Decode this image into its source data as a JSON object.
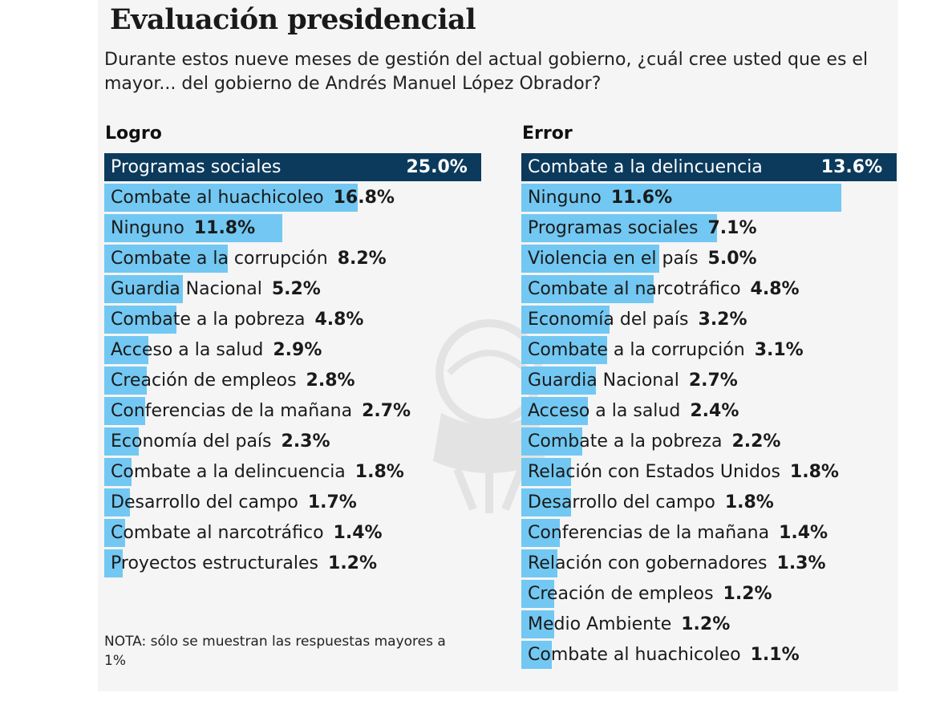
{
  "title": "Evaluación presidencial",
  "subtitle": "Durante estos nueve meses de gestión del actual gobierno, ¿cuál cree usted que es el mayor... del gobierno de Andrés Manuel López Obrador?",
  "note": "NOTA: sólo se muestran las respuestas mayores a 1%",
  "colors": {
    "highlight": "#0c3a5c",
    "bar": "#72c8f2",
    "background": "#f5f5f5"
  },
  "chart_data": [
    {
      "type": "bar",
      "orientation": "horizontal",
      "title": "Logro",
      "max": 25.0,
      "unit": "%",
      "categories": [
        "Programas sociales",
        "Combate al huachicoleo",
        "Ninguno",
        "Combate a la corrupción",
        "Guardia Nacional",
        "Combate a la pobreza",
        "Acceso a la salud",
        "Creación de empleos",
        "Conferencias de la mañana",
        "Economía del país",
        "Combate a la delincuencia",
        "Desarrollo del campo",
        "Combate al narcotráfico",
        "Proyectos estructurales"
      ],
      "values": [
        25.0,
        16.8,
        11.8,
        8.2,
        5.2,
        4.8,
        2.9,
        2.8,
        2.7,
        2.3,
        1.8,
        1.7,
        1.4,
        1.2
      ],
      "labels": [
        "25.0%",
        "16.8%",
        "11.8%",
        "8.2%",
        "5.2%",
        "4.8%",
        "2.9%",
        "2.8%",
        "2.7%",
        "2.3%",
        "1.8%",
        "1.7%",
        "1.4%",
        "1.2%"
      ]
    },
    {
      "type": "bar",
      "orientation": "horizontal",
      "title": "Error",
      "max": 13.6,
      "unit": "%",
      "categories": [
        "Combate a la delincuencia",
        "Ninguno",
        "Programas sociales",
        "Violencia en el país",
        "Combate al narcotráfico",
        "Economía del país",
        "Combate a la corrupción",
        "Guardia Nacional",
        "Acceso a la salud",
        "Combate a la pobreza",
        "Relación con Estados Unidos",
        "Desarrollo del campo",
        "Conferencias de la mañana",
        "Relación con gobernadores",
        "Creación de empleos",
        "Medio Ambiente",
        "Combate al huachicoleo"
      ],
      "values": [
        13.6,
        11.6,
        7.1,
        5.0,
        4.8,
        3.2,
        3.1,
        2.7,
        2.4,
        2.2,
        1.8,
        1.8,
        1.4,
        1.3,
        1.2,
        1.2,
        1.1
      ],
      "labels": [
        "13.6%",
        "11.6%",
        "7.1%",
        "5.0%",
        "4.8%",
        "3.2%",
        "3.1%",
        "2.7%",
        "2.4%",
        "2.2%",
        "1.8%",
        "1.8%",
        "1.4%",
        "1.3%",
        "1.2%",
        "1.2%",
        "1.1%"
      ]
    }
  ]
}
